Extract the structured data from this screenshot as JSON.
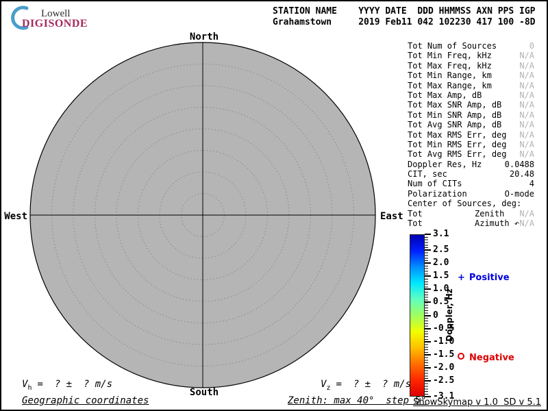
{
  "logo": {
    "top": "Lowell",
    "bottom": "DIGISONDE",
    "brand_color": "#a4295c",
    "arc_color": "#4a9dca"
  },
  "header": {
    "row1": "STATION NAME    YYYY DATE  DDD HHMMSS AXN PPS IGP",
    "row2": "Grahamstown     2019 Feb11 042 102230 417 100 -8D"
  },
  "skymap": {
    "north": "North",
    "south": "South",
    "east": "East",
    "west": "West",
    "zenith_max_deg": 40,
    "zenith_step_deg": 5,
    "disc_color": "#b5b5b5"
  },
  "stats": {
    "rows": [
      {
        "label": "Tot Num of Sources",
        "value": "0",
        "dim": true
      },
      {
        "label": "Tot Min Freq, kHz",
        "value": "N/A",
        "dim": true
      },
      {
        "label": "Tot Max Freq, kHz",
        "value": "N/A",
        "dim": true
      },
      {
        "label": "Tot Min Range, km",
        "value": "N/A",
        "dim": true
      },
      {
        "label": "Tot Max Range, km",
        "value": "N/A",
        "dim": true
      },
      {
        "label": "Tot Max Amp, dB",
        "value": "N/A",
        "dim": true
      },
      {
        "label": "Tot Max SNR Amp, dB",
        "value": "N/A",
        "dim": true
      },
      {
        "label": "Tot Min SNR Amp, dB",
        "value": "N/A",
        "dim": true
      },
      {
        "label": "Tot Avg SNR Amp, dB",
        "value": "N/A",
        "dim": true
      },
      {
        "label": "Tot Max RMS Err, deg",
        "value": "N/A",
        "dim": true
      },
      {
        "label": "Tot Min RMS Err, deg",
        "value": "N/A",
        "dim": true
      },
      {
        "label": "Tot Avg RMS Err, deg",
        "value": "N/A",
        "dim": true
      },
      {
        "label": "Doppler Res, Hz",
        "value": "0.0488",
        "dim": false
      },
      {
        "label": "CIT, sec",
        "value": "20.48",
        "dim": false
      },
      {
        "label": "Num of CITs",
        "value": "4",
        "dim": false
      },
      {
        "label": "Polarization",
        "value": "O-mode",
        "dim": false
      },
      {
        "label": "Center of Sources, deg:",
        "value": "",
        "dim": false
      },
      {
        "label": "Tot",
        "mid": "Zenith",
        "value": "N/A",
        "dim": true
      },
      {
        "label": "Tot",
        "mid": "Azimuth ↶",
        "value": "N/A",
        "dim": true
      }
    ]
  },
  "colorbar": {
    "title": "Doppler, Hz",
    "max": 3.1,
    "min": -3.1,
    "ticks": [
      3.1,
      2.5,
      2.0,
      1.5,
      1.0,
      0.5,
      0,
      -0.5,
      -1.0,
      -1.5,
      -2.0,
      -2.5,
      -3.1
    ],
    "tick_labels": [
      "3.1",
      "2.5",
      "2.0",
      "1.5",
      "1.0",
      "0.5",
      "0",
      "-0.5",
      "-1.0",
      "-1.5",
      "-2.0",
      "-2.5",
      "-3.1"
    ],
    "gradient_top_to_bottom": [
      "#0000b0",
      "#0020ff",
      "#0090ff",
      "#00e8ff",
      "#60ffc0",
      "#a0ff60",
      "#f0ff00",
      "#ffc000",
      "#ff7000",
      "#ff2800",
      "#dc0000"
    ],
    "positive_marker": "+",
    "positive_label": "Positive",
    "positive_color": "#0000dd",
    "negative_marker": "o",
    "negative_label": "Negative",
    "negative_color": "#dd0000"
  },
  "footer": {
    "vh_symbol": "V",
    "vh_sub": "h",
    "vh_value": "=  ? ±  ? m/s",
    "coords": "Geographic coordinates",
    "vz_symbol": "V",
    "vz_sub": "z",
    "vz_value": "=  ? ±  ? m/s",
    "zenith_note": "Zenith: max 40°  step 5°",
    "version": "ShowSkymap v 1.0  SD v 5.1"
  },
  "chart_data": {
    "type": "scatter",
    "projection": "polar-skymap",
    "points": [],
    "num_sources": 0,
    "zenith_rings_deg": [
      5,
      10,
      15,
      20,
      25,
      30,
      35,
      40
    ],
    "colorbar": {
      "label": "Doppler, Hz",
      "range": [
        -3.1,
        3.1
      ],
      "major_tick_step": 0.5,
      "orientation": "vertical-right"
    }
  }
}
